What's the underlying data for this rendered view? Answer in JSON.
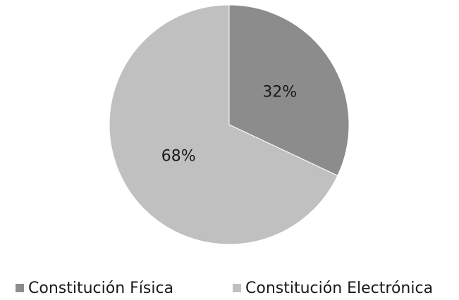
{
  "chart_data": {
    "type": "pie",
    "categories": [
      "Constitución Física",
      "Constitución Electrónica"
    ],
    "values": [
      32,
      68
    ],
    "value_labels": [
      "32%",
      "68%"
    ],
    "colors": [
      "#8c8c8c",
      "#c0c0c0"
    ]
  }
}
